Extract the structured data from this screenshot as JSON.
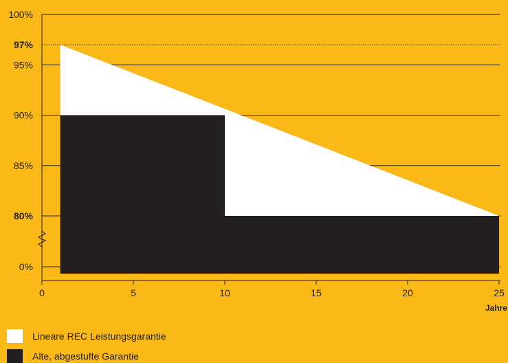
{
  "chart_data": {
    "type": "area",
    "xlabel": "Jahre",
    "ylabel": "",
    "x_ticks": [
      "0",
      "5",
      "10",
      "15",
      "20",
      "25"
    ],
    "xlim": [
      0,
      25
    ],
    "y_ticks": [
      "100%",
      "97%",
      "95%",
      "90%",
      "85%",
      "80%",
      "0%"
    ],
    "y_axis_broken": true,
    "grid": true,
    "reference_line": {
      "value": 97,
      "label": "97%",
      "style": "dotted"
    },
    "series": [
      {
        "name": "Lineare REC Leistungsgarantie",
        "color": "#FFFFFF",
        "x": [
          1,
          25
        ],
        "y": [
          97,
          80
        ]
      },
      {
        "name": "Alte, abgestufte Garantie",
        "color": "#231F20",
        "x": [
          1,
          10,
          10,
          25
        ],
        "y": [
          90,
          90,
          80,
          80
        ]
      }
    ],
    "legend_position": "bottom-left"
  },
  "colors": {
    "background": "#FBB917",
    "ink": "#231F20",
    "white": "#FFFFFF"
  },
  "legend": {
    "items": [
      {
        "label": "Lineare REC Leistungsgarantie",
        "color": "#FFFFFF"
      },
      {
        "label": "Alte, abgestufte Garantie",
        "color": "#231F20"
      }
    ]
  }
}
